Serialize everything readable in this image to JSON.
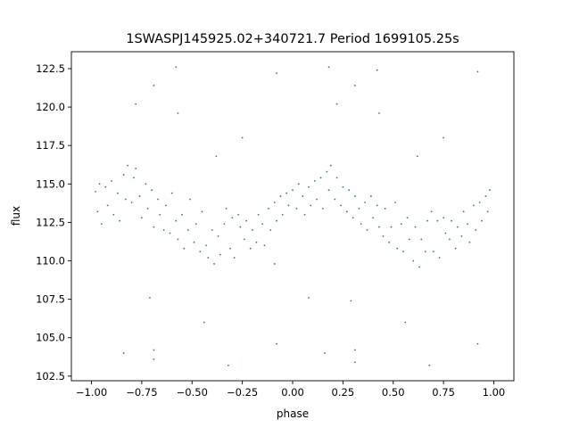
{
  "chart_data": {
    "type": "scatter",
    "title": "1SWASPJ145925.02+340721.7 Period 1699105.25s",
    "xlabel": "phase",
    "ylabel": "flux",
    "xlim": [
      -1.1,
      1.1
    ],
    "ylim": [
      102.2,
      123.6
    ],
    "xticks": [
      -1.0,
      -0.75,
      -0.5,
      -0.25,
      0.0,
      0.25,
      0.5,
      0.75,
      1.0
    ],
    "xtick_labels": [
      "−1.00",
      "−0.75",
      "−0.50",
      "−0.25",
      "0.00",
      "0.25",
      "0.50",
      "0.75",
      "1.00"
    ],
    "yticks": [
      102.5,
      105.0,
      107.5,
      110.0,
      112.5,
      115.0,
      117.5,
      120.0,
      122.5
    ],
    "ytick_labels": [
      "102.5",
      "105.0",
      "107.5",
      "110.0",
      "112.5",
      "115.0",
      "117.5",
      "120.0",
      "122.5"
    ],
    "grid": false,
    "legend": "none",
    "marker_color": "#1f77b4",
    "series": [
      {
        "phase_folded": true,
        "points": [
          [
            -0.98,
            114.5
          ],
          [
            -0.97,
            113.2
          ],
          [
            -0.96,
            115.0
          ],
          [
            -0.95,
            112.4
          ],
          [
            -0.93,
            114.8
          ],
          [
            -0.92,
            113.6
          ],
          [
            -0.9,
            115.2
          ],
          [
            -0.89,
            113.0
          ],
          [
            -0.87,
            114.4
          ],
          [
            -0.86,
            112.6
          ],
          [
            -0.84,
            115.6
          ],
          [
            -0.83,
            114.0
          ],
          [
            -0.82,
            116.2
          ],
          [
            -0.8,
            113.8
          ],
          [
            -0.79,
            115.4
          ],
          [
            -0.78,
            116.0
          ],
          [
            -0.76,
            114.2
          ],
          [
            -0.75,
            112.8
          ],
          [
            -0.73,
            115.0
          ],
          [
            -0.72,
            113.4
          ],
          [
            -0.7,
            114.6
          ],
          [
            -0.69,
            112.2
          ],
          [
            -0.67,
            114.0
          ],
          [
            -0.66,
            113.0
          ],
          [
            -0.64,
            112.0
          ],
          [
            -0.63,
            113.6
          ],
          [
            -0.61,
            111.8
          ],
          [
            -0.6,
            114.4
          ],
          [
            -0.58,
            112.6
          ],
          [
            -0.57,
            111.4
          ],
          [
            -0.55,
            113.0
          ],
          [
            -0.54,
            110.8
          ],
          [
            -0.52,
            112.0
          ],
          [
            -0.51,
            114.0
          ],
          [
            -0.49,
            111.2
          ],
          [
            -0.48,
            112.4
          ],
          [
            -0.46,
            110.6
          ],
          [
            -0.45,
            113.2
          ],
          [
            -0.43,
            111.0
          ],
          [
            -0.42,
            110.2
          ],
          [
            -0.4,
            112.0
          ],
          [
            -0.39,
            109.8
          ],
          [
            -0.37,
            111.6
          ],
          [
            -0.36,
            110.4
          ],
          [
            -0.34,
            112.4
          ],
          [
            -0.33,
            113.4
          ],
          [
            -0.31,
            110.8
          ],
          [
            -0.3,
            112.8
          ],
          [
            -0.29,
            110.2
          ],
          [
            -0.27,
            113.0
          ],
          [
            -0.26,
            112.2
          ],
          [
            -0.24,
            111.4
          ],
          [
            -0.23,
            112.6
          ],
          [
            -0.21,
            110.8
          ],
          [
            -0.2,
            112.0
          ],
          [
            -0.18,
            111.2
          ],
          [
            -0.17,
            113.0
          ],
          [
            -0.15,
            112.4
          ],
          [
            -0.14,
            111.0
          ],
          [
            -0.12,
            113.4
          ],
          [
            -0.11,
            112.0
          ],
          [
            -0.09,
            113.8
          ],
          [
            -0.08,
            112.6
          ],
          [
            -0.06,
            114.2
          ],
          [
            -0.05,
            113.0
          ],
          [
            -0.03,
            114.4
          ],
          [
            -0.02,
            113.6
          ],
          [
            0.0,
            114.6
          ],
          [
            0.02,
            113.4
          ],
          [
            0.03,
            115.0
          ],
          [
            0.05,
            114.2
          ],
          [
            0.06,
            113.0
          ],
          [
            0.08,
            114.8
          ],
          [
            0.09,
            113.6
          ],
          [
            0.11,
            115.2
          ],
          [
            0.12,
            114.0
          ],
          [
            0.14,
            115.4
          ],
          [
            0.15,
            113.4
          ],
          [
            0.17,
            115.8
          ],
          [
            0.18,
            114.6
          ],
          [
            0.19,
            116.2
          ],
          [
            0.21,
            114.0
          ],
          [
            0.22,
            115.4
          ],
          [
            0.24,
            113.6
          ],
          [
            0.25,
            114.8
          ],
          [
            0.27,
            113.2
          ],
          [
            0.28,
            114.6
          ],
          [
            0.3,
            112.8
          ],
          [
            0.31,
            114.2
          ],
          [
            0.33,
            113.4
          ],
          [
            0.34,
            112.4
          ],
          [
            0.36,
            113.8
          ],
          [
            0.37,
            112.0
          ],
          [
            0.39,
            114.2
          ],
          [
            0.4,
            112.8
          ],
          [
            0.42,
            113.6
          ],
          [
            0.43,
            112.2
          ],
          [
            0.45,
            111.6
          ],
          [
            0.46,
            113.4
          ],
          [
            0.48,
            111.2
          ],
          [
            0.49,
            112.2
          ],
          [
            0.51,
            113.8
          ],
          [
            0.52,
            110.8
          ],
          [
            0.54,
            112.4
          ],
          [
            0.55,
            110.6
          ],
          [
            0.57,
            112.8
          ],
          [
            0.58,
            111.4
          ],
          [
            0.6,
            110.0
          ],
          [
            0.61,
            112.2
          ],
          [
            0.63,
            109.6
          ],
          [
            0.64,
            111.4
          ],
          [
            0.66,
            110.6
          ],
          [
            0.67,
            112.6
          ],
          [
            0.69,
            113.2
          ],
          [
            0.7,
            110.6
          ],
          [
            0.72,
            112.6
          ],
          [
            0.73,
            110.2
          ],
          [
            0.75,
            112.8
          ],
          [
            0.76,
            111.8
          ],
          [
            0.78,
            111.4
          ],
          [
            0.79,
            112.6
          ],
          [
            0.81,
            110.8
          ],
          [
            0.82,
            112.2
          ],
          [
            0.84,
            111.6
          ],
          [
            0.85,
            113.2
          ],
          [
            0.87,
            112.4
          ],
          [
            0.88,
            111.2
          ],
          [
            0.9,
            113.6
          ],
          [
            0.91,
            112.0
          ],
          [
            0.93,
            113.8
          ],
          [
            0.94,
            112.6
          ],
          [
            0.96,
            114.2
          ],
          [
            0.97,
            113.2
          ],
          [
            0.98,
            114.6
          ],
          [
            -0.69,
            103.6
          ],
          [
            -0.69,
            104.2
          ],
          [
            -0.71,
            107.6
          ],
          [
            -0.44,
            106.0
          ],
          [
            -0.32,
            103.2
          ],
          [
            -0.09,
            109.8
          ],
          [
            0.08,
            107.6
          ],
          [
            0.31,
            103.4
          ],
          [
            0.31,
            104.2
          ],
          [
            0.29,
            107.4
          ],
          [
            0.56,
            106.0
          ],
          [
            0.68,
            103.2
          ],
          [
            -0.58,
            122.6
          ],
          [
            -0.08,
            122.2
          ],
          [
            0.18,
            122.6
          ],
          [
            0.42,
            122.4
          ],
          [
            0.92,
            122.3
          ],
          [
            -0.69,
            121.4
          ],
          [
            0.31,
            121.4
          ],
          [
            -0.78,
            120.2
          ],
          [
            0.22,
            120.2
          ],
          [
            -0.57,
            119.6
          ],
          [
            0.43,
            119.6
          ],
          [
            0.16,
            104.0
          ],
          [
            -0.84,
            104.0
          ],
          [
            0.92,
            104.6
          ],
          [
            -0.08,
            104.6
          ],
          [
            0.75,
            118.0
          ],
          [
            -0.25,
            118.0
          ],
          [
            0.62,
            116.8
          ],
          [
            -0.38,
            116.8
          ]
        ]
      }
    ]
  }
}
